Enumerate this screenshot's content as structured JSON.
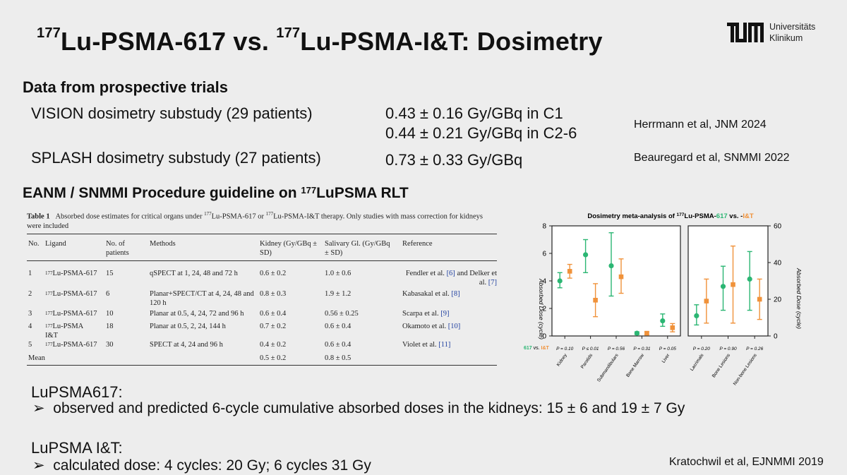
{
  "title": {
    "prefix_sup": "177",
    "part1": "Lu-PSMA-617 vs. ",
    "mid_sup": "177",
    "part2": "Lu-PSMA-I&T: Dosimetry"
  },
  "logo": {
    "line1": "Universitäts",
    "line2": "Klinikum"
  },
  "subtitle": "Data from prospective trials",
  "trials": [
    {
      "name": "VISION dosimetry substudy (29 patients)",
      "values": [
        "0.43 ± 0.16 Gy/GBq in C1",
        "0.44 ± 0.21 Gy/GBq in C2-6"
      ],
      "ref": "Herrmann et al, JNM 2024"
    },
    {
      "name": "SPLASH dosimetry substudy (27 patients)",
      "values": [
        "0.73 ± 0.33 Gy/GBq"
      ],
      "ref": "Beauregard et al, SNMMI 2022"
    }
  ],
  "guideline": {
    "prefix": "EANM / SNMMI Procedure guideline on ",
    "sup": "177",
    "suffix": "LuPSMA RLT"
  },
  "table": {
    "label": "Table 1",
    "caption_a": "Absorbed dose estimates for critical organs under ",
    "caption_sup1": "177",
    "caption_b": "Lu-PSMA-617 or ",
    "caption_sup2": "177",
    "caption_c": "Lu-PSMA-I&T therapy. Only studies with mass correction for kidneys were included",
    "headers": {
      "no": "No.",
      "ligand": "Ligand",
      "patients": "No. of patients",
      "methods": "Methods",
      "kidney": "Kidney (Gy/GBq ± SD)",
      "salivary": "Salivary Gl. (Gy/GBq ± SD)",
      "reference": "Reference"
    },
    "rows": [
      {
        "no": "1",
        "ligand_sup": "177",
        "ligand": "Lu-PSMA-617",
        "patients": "15",
        "methods": "qSPECT at 1, 24, 48 and 72 h",
        "kidney": "0.6 ± 0.2",
        "salivary": "1.0 ± 0.6",
        "ref_a": "Fendler et al. ",
        "ref_link1": "[6]",
        "ref_b": " and Delker et al. ",
        "ref_link2": "[7]"
      },
      {
        "no": "2",
        "ligand_sup": "177",
        "ligand": "Lu-PSMA-617",
        "patients": "6",
        "methods": "Planar+SPECT/CT at 4, 24, 48 and 120 h",
        "kidney": "0.8 ± 0.3",
        "salivary": "1.9 ± 1.2",
        "ref_a": "Kabasakal et al. ",
        "ref_link1": "[8]"
      },
      {
        "no": "3",
        "ligand_sup": "177",
        "ligand": "Lu-PSMA-617",
        "patients": "10",
        "methods": "Planar at 0.5, 4, 24, 72 and 96 h",
        "kidney": "0.6 ± 0.4",
        "salivary": "0.56 ± 0.25",
        "ref_a": "Scarpa et al. ",
        "ref_link1": "[9]"
      },
      {
        "no": "4",
        "ligand_sup": "177",
        "ligand": "Lu-PSMA I&T",
        "patients": "18",
        "methods": "Planar at 0.5, 2, 24, 144 h",
        "kidney": "0.7 ± 0.2",
        "salivary": "0.6 ± 0.4",
        "ref_a": "Okamoto et al. ",
        "ref_link1": "[10]"
      },
      {
        "no": "5",
        "ligand_sup": "177",
        "ligand": "Lu-PSMA-617",
        "patients": "30",
        "methods": "SPECT at 4, 24 and 96 h",
        "kidney": "0.4 ± 0.2",
        "salivary": "0.6 ± 0.4",
        "ref_a": "Violet et al. ",
        "ref_link1": "[11]"
      }
    ],
    "mean": {
      "label": "Mean",
      "kidney": "0.5 ± 0.2",
      "salivary": "0.8 ± 0.5"
    }
  },
  "lupsma617": {
    "heading": "LuPSMA617:",
    "bullet": "observed and predicted 6-cycle cumulative absorbed doses in the kidneys: 15 ± 6 and 19 ± 7 Gy"
  },
  "lupsmait": {
    "heading": "LuPSMA I&T:",
    "bullet": "calculated dose: 4 cycles: 20 Gy; 6 cycles 31 Gy"
  },
  "bullet_glyph": "➢",
  "kratochwil_ref": "Kratochwil et al, EJNMMI 2019",
  "chart_data": {
    "type": "scatter",
    "title_prefix": "Dosimetry meta-analysis of ",
    "title_sup": "177",
    "title_mid": "Lu-PSMA-",
    "title_617": "617",
    "title_vs": " vs. -",
    "title_it": "I&T",
    "ylabel_left": "Absorbed Dose (cycle)",
    "ylabel_right": "Absorbed Dose (cycle)",
    "legend_617": "617",
    "legend_vs": "vs.",
    "legend_it": "I&T",
    "colors": {
      "617": "#2bb673",
      "it": "#f0923a"
    },
    "left_panel": {
      "ylim": [
        0,
        8
      ],
      "yticks": [
        "0",
        "2",
        "4",
        "6",
        "8"
      ],
      "categories": [
        "Kidney",
        "Parotids",
        "Submandibulars",
        "Bone Marrow",
        "Liver"
      ],
      "p_values": [
        "P = 0.10",
        "P ≤ 0.01",
        "P = 0.56",
        "P = 0.31",
        "P = 0.05"
      ],
      "series": [
        {
          "name": "617",
          "values": [
            4.0,
            5.9,
            5.1,
            0.2,
            1.1
          ],
          "lower": [
            3.5,
            4.6,
            2.9,
            0.1,
            0.7
          ],
          "upper": [
            4.6,
            7.0,
            7.5,
            0.3,
            1.6
          ]
        },
        {
          "name": "I&T",
          "values": [
            4.7,
            2.6,
            4.3,
            0.2,
            0.6
          ],
          "lower": [
            4.2,
            1.4,
            3.1,
            0.1,
            0.3
          ],
          "upper": [
            5.2,
            3.8,
            5.6,
            0.3,
            0.9
          ]
        }
      ]
    },
    "right_panel": {
      "ylim": [
        0,
        60
      ],
      "yticks": [
        "0",
        "20",
        "40",
        "60"
      ],
      "categories": [
        "Lacrimals",
        "Bone Lesions",
        "Non-bone Lesions"
      ],
      "p_values": [
        "P = 0.20",
        "P = 0.90",
        "P = 0.26"
      ],
      "series": [
        {
          "name": "617",
          "values": [
            11,
            27,
            31
          ],
          "lower": [
            6,
            14,
            14
          ],
          "upper": [
            17,
            38,
            46
          ]
        },
        {
          "name": "I&T",
          "values": [
            19,
            28,
            20
          ],
          "lower": [
            7,
            7,
            9
          ],
          "upper": [
            31,
            49,
            31
          ]
        }
      ]
    }
  }
}
